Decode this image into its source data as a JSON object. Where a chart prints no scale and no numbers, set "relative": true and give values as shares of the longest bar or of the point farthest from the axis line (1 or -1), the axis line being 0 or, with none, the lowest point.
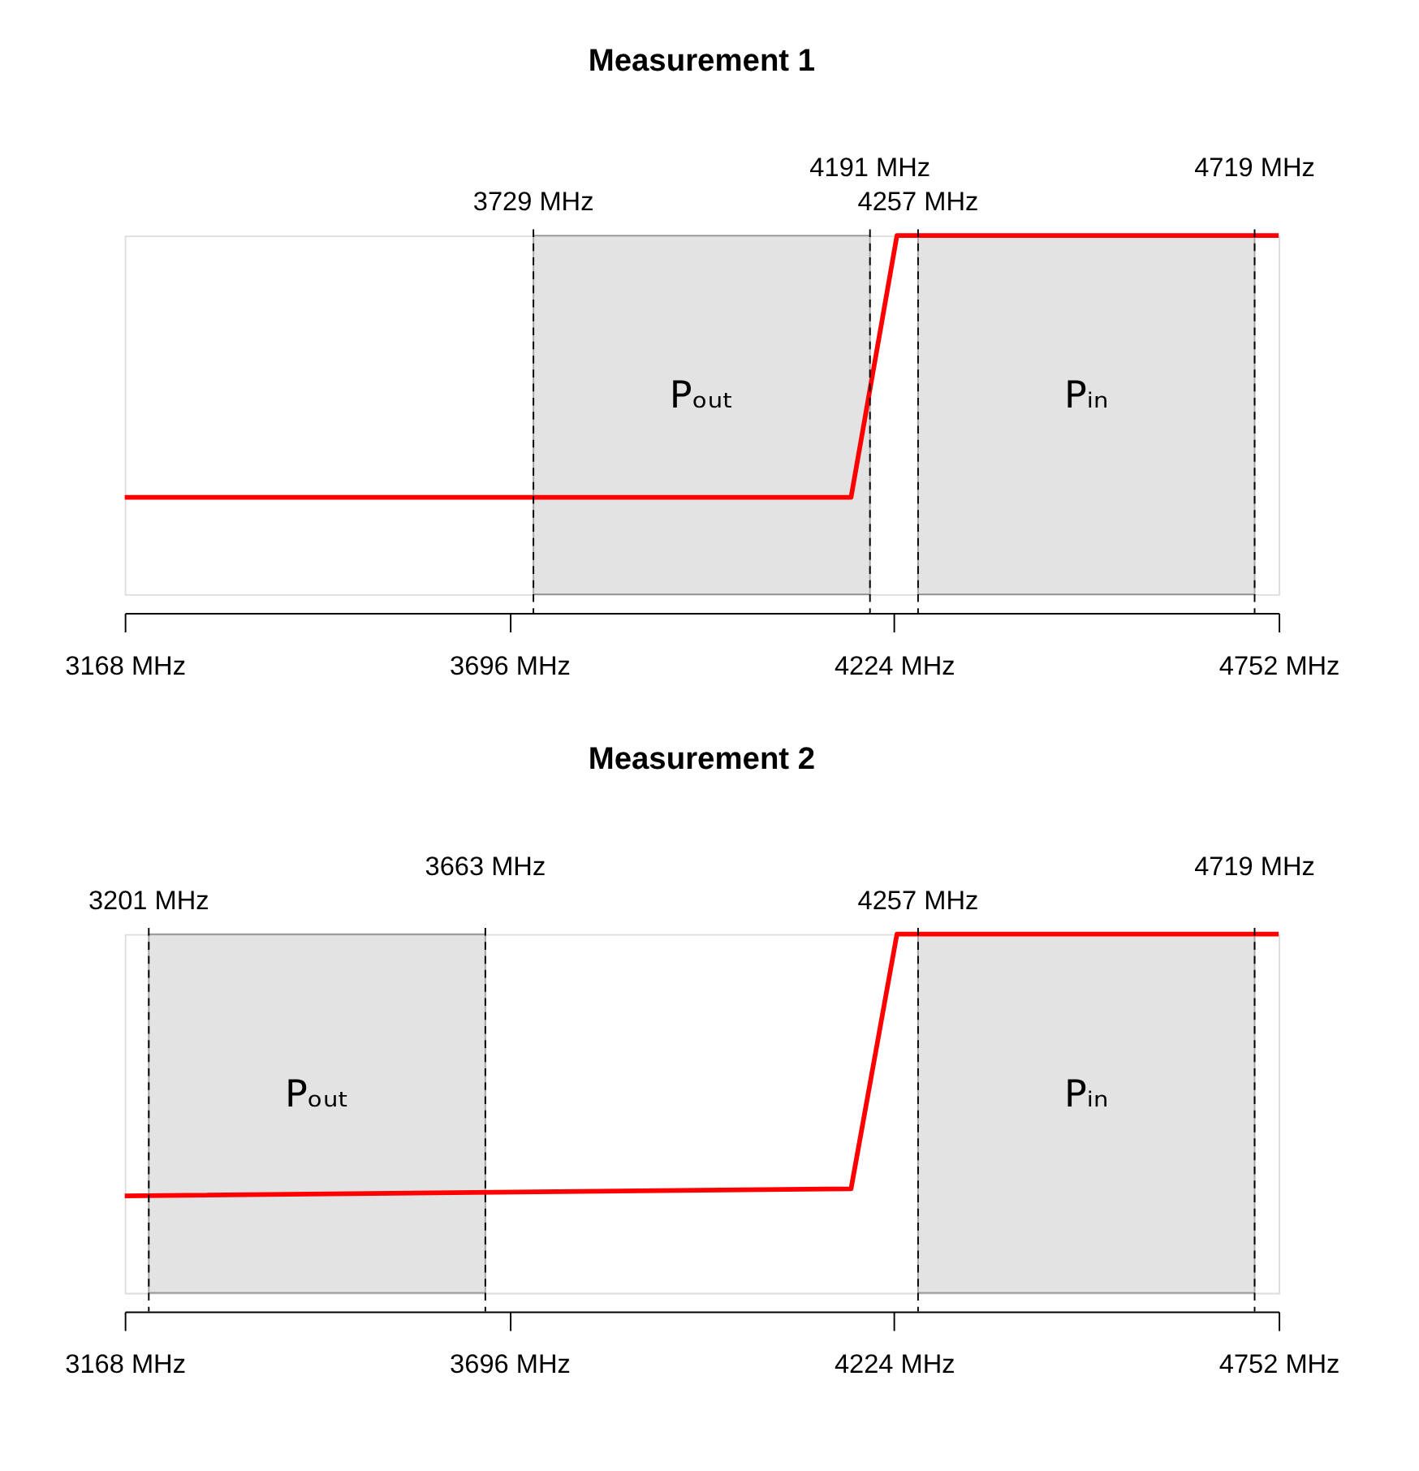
{
  "chart_data": [
    {
      "type": "line",
      "title": "Measurement 1",
      "relative": true,
      "grid": false,
      "marker": "none",
      "xlim": [
        3168,
        4752
      ],
      "xticks": [
        {
          "value": 3168,
          "label": "3168 MHz"
        },
        {
          "value": 3696,
          "label": "3696 MHz"
        },
        {
          "value": 4224,
          "label": "4224 MHz"
        },
        {
          "value": 4752,
          "label": "4752 MHz"
        }
      ],
      "tick_labels": "x",
      "series": [
        {
          "color": "#ff0000",
          "x": [
            3168,
            4165,
            4228,
            4752
          ],
          "values": [
            0.27,
            0.27,
            1,
            1
          ]
        }
      ],
      "ref_lines": [
        {
          "axis": "x",
          "value": 3729,
          "label": "3729 MHz",
          "line_style": "dashed"
        },
        {
          "axis": "x",
          "value": 4191,
          "label": "4191 MHz",
          "line_style": "dashed"
        },
        {
          "axis": "x",
          "value": 4257,
          "label": "4257 MHz",
          "line_style": "dashed"
        },
        {
          "axis": "x",
          "value": 4719,
          "label": "4719 MHz",
          "line_style": "dashed"
        }
      ],
      "bands": [
        {
          "axis": "x",
          "from": 3729,
          "to": 4191,
          "label": "Pₒᵤₜ",
          "color": "#b0b0b0"
        },
        {
          "axis": "x",
          "from": 4257,
          "to": 4719,
          "label": "Pᵢₙ",
          "color": "#b0b0b0"
        }
      ]
    },
    {
      "type": "line",
      "title": "Measurement 2",
      "relative": true,
      "grid": false,
      "marker": "none",
      "xlim": [
        3168,
        4752
      ],
      "xticks": [
        {
          "value": 3168,
          "label": "3168 MHz"
        },
        {
          "value": 3696,
          "label": "3696 MHz"
        },
        {
          "value": 4224,
          "label": "4224 MHz"
        },
        {
          "value": 4752,
          "label": "4752 MHz"
        }
      ],
      "tick_labels": "x",
      "series": [
        {
          "color": "#ff0000",
          "x": [
            3168,
            4165,
            4228,
            4752
          ],
          "values": [
            0.27,
            0.29,
            1,
            1
          ]
        }
      ],
      "ref_lines": [
        {
          "axis": "x",
          "value": 3201,
          "label": "3201 MHz",
          "line_style": "dashed"
        },
        {
          "axis": "x",
          "value": 3663,
          "label": "3663 MHz",
          "line_style": "dashed"
        },
        {
          "axis": "x",
          "value": 4257,
          "label": "4257 MHz",
          "line_style": "dashed"
        },
        {
          "axis": "x",
          "value": 4719,
          "label": "4719 MHz",
          "line_style": "dashed"
        }
      ],
      "bands": [
        {
          "axis": "x",
          "from": 3201,
          "to": 3663,
          "label": "Pₒᵤₜ",
          "color": "#b0b0b0"
        },
        {
          "axis": "x",
          "from": 4257,
          "to": 4719,
          "label": "Pᵢₙ",
          "color": "#b0b0b0"
        }
      ]
    }
  ]
}
